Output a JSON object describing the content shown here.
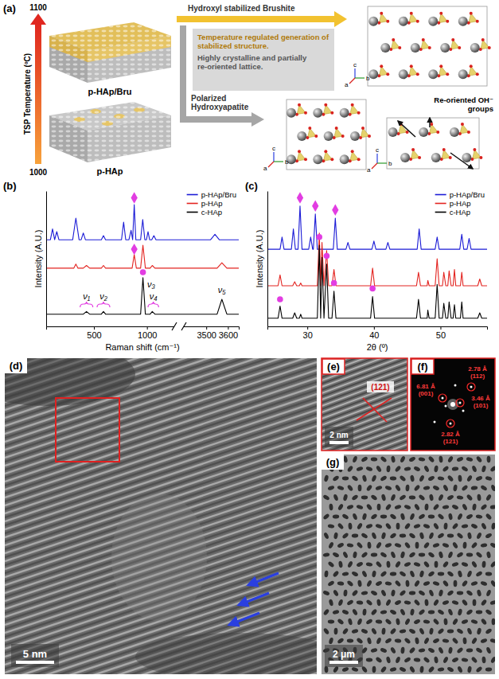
{
  "panel_labels": [
    "(a)",
    "(b)",
    "(c)",
    "(d)",
    "(e)",
    "(f)",
    "(g)"
  ],
  "schematic": {
    "axis_title": "TSP Temperature (ºC)",
    "ticks": [
      1000,
      1100
    ],
    "samples": [
      "p-HAp/Bru",
      "p-HAp"
    ],
    "arrows": [
      "Hydroxyl stabilized Brushite",
      "Polarized Hydroxyapatite"
    ],
    "box": [
      "Temperature regulated generation of stabilized structure.",
      "Highly crystalline and partially re-oriented lattice."
    ],
    "note": "Re-oriented OH⁻ groups",
    "crystal_axes": [
      "a",
      "b",
      "c"
    ]
  },
  "chart_data": [
    {
      "type": "line",
      "x_label": "Raman shift (cm⁻¹)",
      "y_label": "Intensity (A.U.)",
      "xlim": [
        50,
        3650
      ],
      "x_break": [
        1250,
        3400
      ],
      "xticks": [
        500,
        1000,
        3500,
        3600
      ],
      "ylim": [
        0,
        100
      ],
      "tick_labels": "x",
      "legend": "top-right",
      "series": [
        {
          "name": "p-HAp/Bru",
          "color": "#1c1cd6",
          "x": [
            50,
            90,
            110,
            130,
            150,
            170,
            300,
            330,
            360,
            380,
            400,
            420,
            570,
            590,
            610,
            760,
            780,
            800,
            830,
            850,
            865,
            880,
            895,
            940,
            960,
            980,
            995,
            1010,
            1025,
            1045,
            1065,
            1085,
            1250,
            3400,
            3520,
            3540,
            3560,
            3650
          ],
          "values": [
            64,
            64,
            72,
            64,
            70,
            64,
            64,
            80,
            64,
            64,
            69,
            64,
            64,
            67,
            64,
            64,
            77,
            64,
            64,
            71,
            64,
            90,
            64,
            64,
            79,
            64,
            64,
            70,
            64,
            64,
            67,
            64,
            64,
            64,
            64,
            68,
            64,
            64
          ]
        },
        {
          "name": "p-HAp",
          "color": "#e32420",
          "x": [
            50,
            310,
            330,
            350,
            400,
            430,
            460,
            570,
            590,
            610,
            860,
            880,
            900,
            940,
            962,
            985,
            1030,
            1050,
            1075,
            1250,
            3400,
            3550,
            3572,
            3595,
            3650
          ],
          "values": [
            43,
            43,
            46,
            43,
            43,
            45,
            43,
            43,
            45,
            43,
            43,
            53,
            43,
            43,
            60,
            43,
            43,
            45,
            43,
            43,
            43,
            43,
            47,
            43,
            43
          ]
        },
        {
          "name": "c-HAp",
          "color": "#000000",
          "x": [
            50,
            400,
            430,
            460,
            570,
            590,
            610,
            940,
            962,
            985,
            1030,
            1050,
            1075,
            1250,
            3400,
            3550,
            3572,
            3595,
            3650
          ],
          "values": [
            9,
            9,
            11,
            9,
            9,
            11,
            9,
            9,
            36,
            9,
            9,
            11,
            9,
            9,
            9,
            9,
            20,
            9,
            9
          ]
        }
      ],
      "annotations": [
        {
          "marker": "diamond",
          "color": "#e23de2",
          "x": 880,
          "y": 95
        },
        {
          "marker": "diamond",
          "color": "#e23de2",
          "x": 880,
          "y": 57
        },
        {
          "marker": "circle",
          "color": "#e23de2",
          "x": 962,
          "y": 40
        }
      ],
      "labels": [
        {
          "text": "ν₁",
          "x": 430,
          "y": 20,
          "range": [
            370,
            490
          ]
        },
        {
          "text": "ν₂",
          "x": 590,
          "y": 20,
          "range": [
            530,
            650
          ]
        },
        {
          "text": "ν₃",
          "x": 1040,
          "y": 29
        },
        {
          "text": "ν₄",
          "x": 1060,
          "y": 20,
          "range": [
            1010,
            1110
          ]
        },
        {
          "text": "ν₅",
          "x": 3572,
          "y": 25
        }
      ]
    },
    {
      "type": "line",
      "x_label": "2θ (º)",
      "y_label": "Intensity (A.U.)",
      "xlim": [
        24,
        57
      ],
      "xticks": [
        30,
        40,
        50
      ],
      "ylim": [
        0,
        100
      ],
      "tick_labels": "x",
      "legend": "top-right",
      "series": [
        {
          "name": "p-HAp/Bru",
          "color": "#1c1cd6",
          "x": [
            24,
            25.9,
            26.2,
            26.5,
            27.6,
            27.9,
            28.2,
            28.6,
            28.9,
            29.2,
            30.2,
            30.5,
            30.8,
            30.9,
            31.2,
            31.5,
            33.9,
            34.2,
            34.5,
            35.8,
            36.1,
            36.4,
            39.7,
            40.0,
            40.3,
            41.8,
            42.1,
            42.4,
            46.5,
            46.8,
            47.1,
            49.2,
            49.5,
            49.8,
            52.9,
            53.2,
            53.5,
            54.0,
            54.3,
            54.6,
            57
          ],
          "values": [
            57,
            57,
            66,
            57,
            57,
            72,
            57,
            57,
            89,
            57,
            57,
            66,
            57,
            57,
            83,
            57,
            57,
            80,
            57,
            57,
            62,
            57,
            57,
            63,
            57,
            57,
            62,
            57,
            57,
            72,
            57,
            57,
            66,
            57,
            57,
            68,
            57,
            57,
            65,
            57,
            57
          ]
        },
        {
          "name": "p-HAp",
          "color": "#e32420",
          "x": [
            24,
            25.6,
            25.9,
            26.2,
            27.8,
            28.1,
            28.4,
            28.8,
            29.0,
            29.2,
            31.5,
            31.8,
            32.0,
            32.2,
            32.5,
            32.9,
            33.2,
            33.7,
            34.0,
            34.3,
            39.5,
            39.8,
            40.1,
            46.4,
            46.7,
            47.0,
            48.0,
            48.1,
            48.3,
            49.2,
            49.5,
            49.8,
            50.3,
            50.5,
            50.8,
            51.1,
            51.3,
            51.6,
            51.9,
            52.1,
            52.3,
            53.0,
            53.2,
            53.4,
            55.6,
            55.9,
            56.2,
            57
          ],
          "values": [
            30,
            30,
            38,
            30,
            30,
            33,
            30,
            30,
            32,
            30,
            30,
            69,
            30,
            62,
            30,
            56,
            30,
            30,
            42,
            30,
            30,
            43,
            30,
            30,
            40,
            30,
            30,
            34,
            30,
            30,
            50,
            30,
            30,
            40,
            30,
            30,
            41,
            30,
            30,
            42,
            30,
            30,
            40,
            30,
            30,
            35,
            30,
            30
          ]
        },
        {
          "name": "c-HAp",
          "color": "#000000",
          "x": [
            24,
            25.6,
            25.9,
            26.2,
            27.8,
            28.1,
            28.4,
            28.8,
            29.0,
            29.2,
            31.5,
            31.8,
            32.0,
            32.2,
            32.5,
            32.9,
            33.2,
            33.7,
            34.0,
            34.3,
            39.5,
            39.8,
            40.1,
            46.4,
            46.7,
            47.0,
            48.0,
            48.1,
            48.3,
            49.2,
            49.5,
            49.8,
            50.3,
            50.5,
            50.8,
            51.1,
            51.3,
            51.6,
            51.9,
            52.1,
            52.3,
            53.0,
            53.2,
            53.4,
            55.6,
            55.9,
            56.2,
            57
          ],
          "values": [
            6,
            6,
            15,
            6,
            6,
            10,
            6,
            6,
            9,
            6,
            6,
            60,
            6,
            51,
            6,
            46,
            6,
            6,
            26,
            6,
            6,
            22,
            6,
            6,
            20,
            6,
            6,
            12,
            6,
            6,
            31,
            6,
            6,
            17,
            6,
            6,
            18,
            6,
            6,
            16,
            6,
            6,
            18,
            6,
            6,
            10,
            6,
            6
          ]
        }
      ],
      "annotations": [
        {
          "marker": "diamond",
          "color": "#e23de2",
          "x": 28.9,
          "y": 95
        },
        {
          "marker": "diamond",
          "color": "#e23de2",
          "x": 31.2,
          "y": 89
        },
        {
          "marker": "diamond",
          "color": "#e23de2",
          "x": 34.2,
          "y": 86
        },
        {
          "marker": "circle",
          "color": "#e23de2",
          "x": 25.9,
          "y": 20
        },
        {
          "marker": "circle",
          "color": "#e23de2",
          "x": 31.8,
          "y": 66
        },
        {
          "marker": "circle",
          "color": "#e23de2",
          "x": 32.9,
          "y": 52
        },
        {
          "marker": "circle",
          "color": "#e23de2",
          "x": 34.0,
          "y": 32
        },
        {
          "marker": "circle",
          "color": "#e23de2",
          "x": 39.8,
          "y": 28
        }
      ]
    }
  ],
  "micrographs": {
    "d": {
      "scale_bar": "5 nm"
    },
    "e": {
      "scale_bar": "2 nm",
      "plane": "(121)"
    },
    "f": {
      "spots": [
        {
          "d": "6.81 Å",
          "plane": "(001)"
        },
        {
          "d": "2.78 Å",
          "plane": "(112)"
        },
        {
          "d": "3.46 Å",
          "plane": "(101)"
        },
        {
          "d": "2.82 Å",
          "plane": "(121)"
        }
      ]
    },
    "g": {
      "scale_bar": "2 μm"
    }
  }
}
